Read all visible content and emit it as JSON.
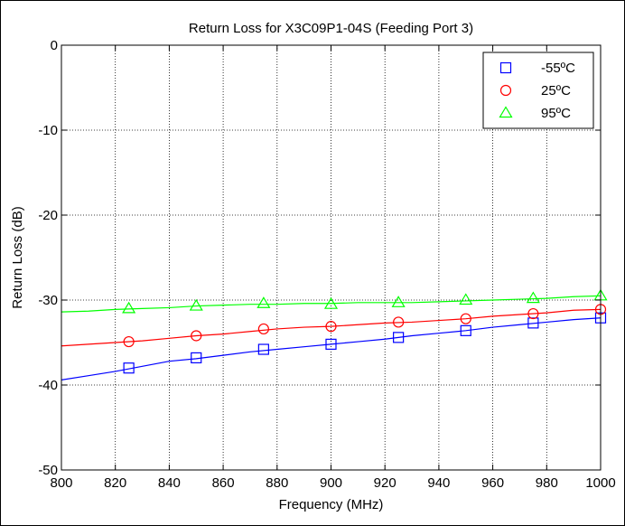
{
  "chart_data": {
    "type": "line",
    "title": "Return Loss for X3C09P1-04S (Feeding Port 3)",
    "xlabel": "Frequency (MHz)",
    "ylabel": "Return Loss (dB)",
    "xlim": [
      800,
      1000
    ],
    "ylim": [
      -50,
      0
    ],
    "xticks": [
      800,
      820,
      840,
      860,
      880,
      900,
      920,
      940,
      960,
      980,
      1000
    ],
    "yticks": [
      -50,
      -40,
      -30,
      -20,
      -10,
      0
    ],
    "grid": true,
    "legend_position": "top-right",
    "series": [
      {
        "name": "-55ºC",
        "color": "#0000ff",
        "marker": "square",
        "x": [
          800,
          810,
          820,
          830,
          840,
          850,
          860,
          870,
          880,
          890,
          900,
          910,
          920,
          930,
          940,
          950,
          960,
          970,
          980,
          990,
          1000
        ],
        "y": [
          -39.4,
          -38.9,
          -38.4,
          -37.8,
          -37.2,
          -36.9,
          -36.5,
          -36.1,
          -35.8,
          -35.5,
          -35.2,
          -34.9,
          -34.6,
          -34.2,
          -33.9,
          -33.6,
          -33.2,
          -32.9,
          -32.6,
          -32.3,
          -32.1
        ],
        "marker_x": [
          825,
          850,
          875,
          900,
          925,
          950,
          975,
          1000
        ],
        "marker_y": [
          -38.0,
          -36.8,
          -35.8,
          -35.2,
          -34.4,
          -33.6,
          -32.7,
          -32.1
        ]
      },
      {
        "name": "25ºC",
        "color": "#ff0000",
        "marker": "circle",
        "x": [
          800,
          810,
          820,
          830,
          840,
          850,
          860,
          870,
          880,
          890,
          900,
          910,
          920,
          930,
          940,
          950,
          960,
          970,
          980,
          990,
          1000
        ],
        "y": [
          -35.4,
          -35.2,
          -35.0,
          -34.8,
          -34.5,
          -34.2,
          -34.0,
          -33.7,
          -33.4,
          -33.2,
          -33.1,
          -32.9,
          -32.7,
          -32.6,
          -32.4,
          -32.2,
          -31.9,
          -31.7,
          -31.5,
          -31.2,
          -31.1
        ],
        "marker_x": [
          825,
          850,
          875,
          900,
          925,
          950,
          975,
          1000
        ],
        "marker_y": [
          -34.9,
          -34.2,
          -33.4,
          -33.1,
          -32.6,
          -32.2,
          -31.6,
          -31.1
        ]
      },
      {
        "name": "95ºC",
        "color": "#00ff00",
        "marker": "triangle",
        "x": [
          800,
          810,
          820,
          830,
          840,
          850,
          860,
          870,
          880,
          890,
          900,
          910,
          920,
          930,
          940,
          950,
          960,
          970,
          980,
          990,
          1000
        ],
        "y": [
          -31.4,
          -31.3,
          -31.1,
          -31.0,
          -30.9,
          -30.7,
          -30.6,
          -30.5,
          -30.5,
          -30.4,
          -30.4,
          -30.3,
          -30.3,
          -30.3,
          -30.2,
          -30.1,
          -30.0,
          -29.9,
          -29.8,
          -29.6,
          -29.5
        ],
        "marker_x": [
          825,
          850,
          875,
          900,
          925,
          950,
          975,
          1000
        ],
        "marker_y": [
          -31.0,
          -30.7,
          -30.4,
          -30.5,
          -30.3,
          -30.0,
          -29.8,
          -29.5
        ]
      }
    ]
  }
}
